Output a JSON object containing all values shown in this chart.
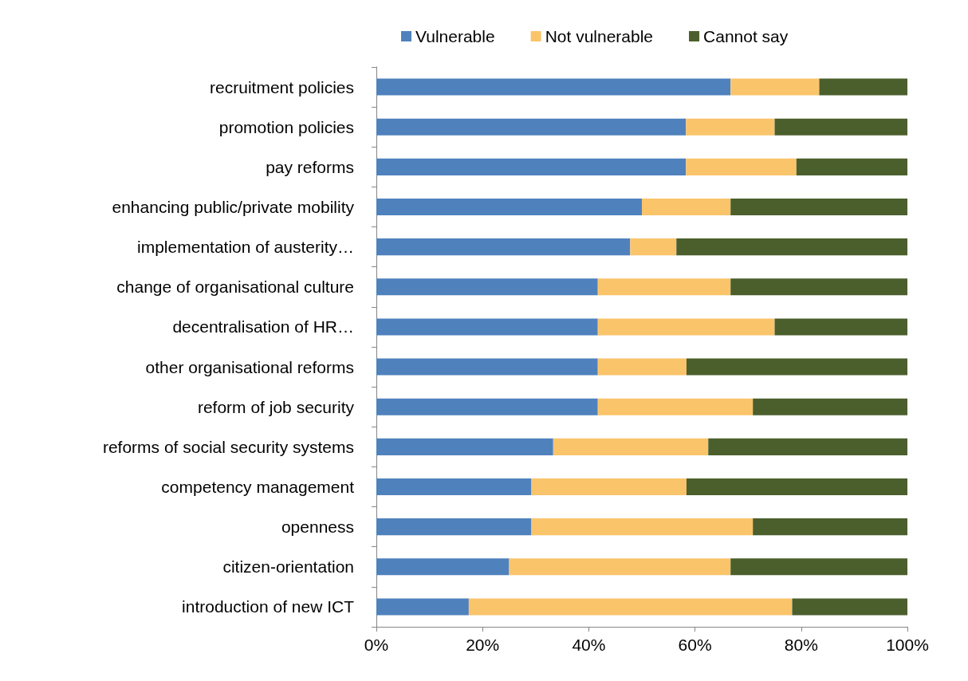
{
  "chart_data": {
    "type": "bar",
    "orientation": "horizontal",
    "stacked": true,
    "categories": [
      "recruitment policies",
      "promotion policies",
      "pay reforms",
      "enhancing public/private mobility",
      "implementation of austerity…",
      "change of organisational culture",
      "decentralisation of HR…",
      "other organisational reforms",
      "reform of job security",
      "reforms of social security systems",
      "competency management",
      "openness",
      "citizen-orientation",
      "introduction of new ICT"
    ],
    "series": [
      {
        "name": "Vulnerable",
        "color": "#4f81bd",
        "values": [
          66.7,
          58.3,
          58.3,
          50,
          47.8,
          41.7,
          41.7,
          41.7,
          41.7,
          33.3,
          29.2,
          29.2,
          25,
          17.4
        ]
      },
      {
        "name": "Not vulnerable",
        "color": "#fac46b",
        "values": [
          16.7,
          16.7,
          20.8,
          16.7,
          8.7,
          25,
          33.3,
          16.7,
          29.2,
          29.2,
          29.2,
          41.7,
          41.7,
          60.9
        ]
      },
      {
        "name": "Cannot say",
        "color": "#4b5f2c",
        "values": [
          16.6,
          25,
          20.9,
          33.3,
          43.5,
          33.3,
          25,
          41.6,
          29.1,
          37.5,
          41.6,
          29.1,
          33.3,
          21.7
        ]
      }
    ],
    "xlim": [
      0,
      100
    ],
    "xticks": [
      {
        "value": 0,
        "label": "0%"
      },
      {
        "value": 20,
        "label": "20%"
      },
      {
        "value": 40,
        "label": "40%"
      },
      {
        "value": 60,
        "label": "60%"
      },
      {
        "value": 80,
        "label": "80%"
      },
      {
        "value": 100,
        "label": "100%"
      }
    ],
    "grid": false,
    "legend": "top"
  }
}
